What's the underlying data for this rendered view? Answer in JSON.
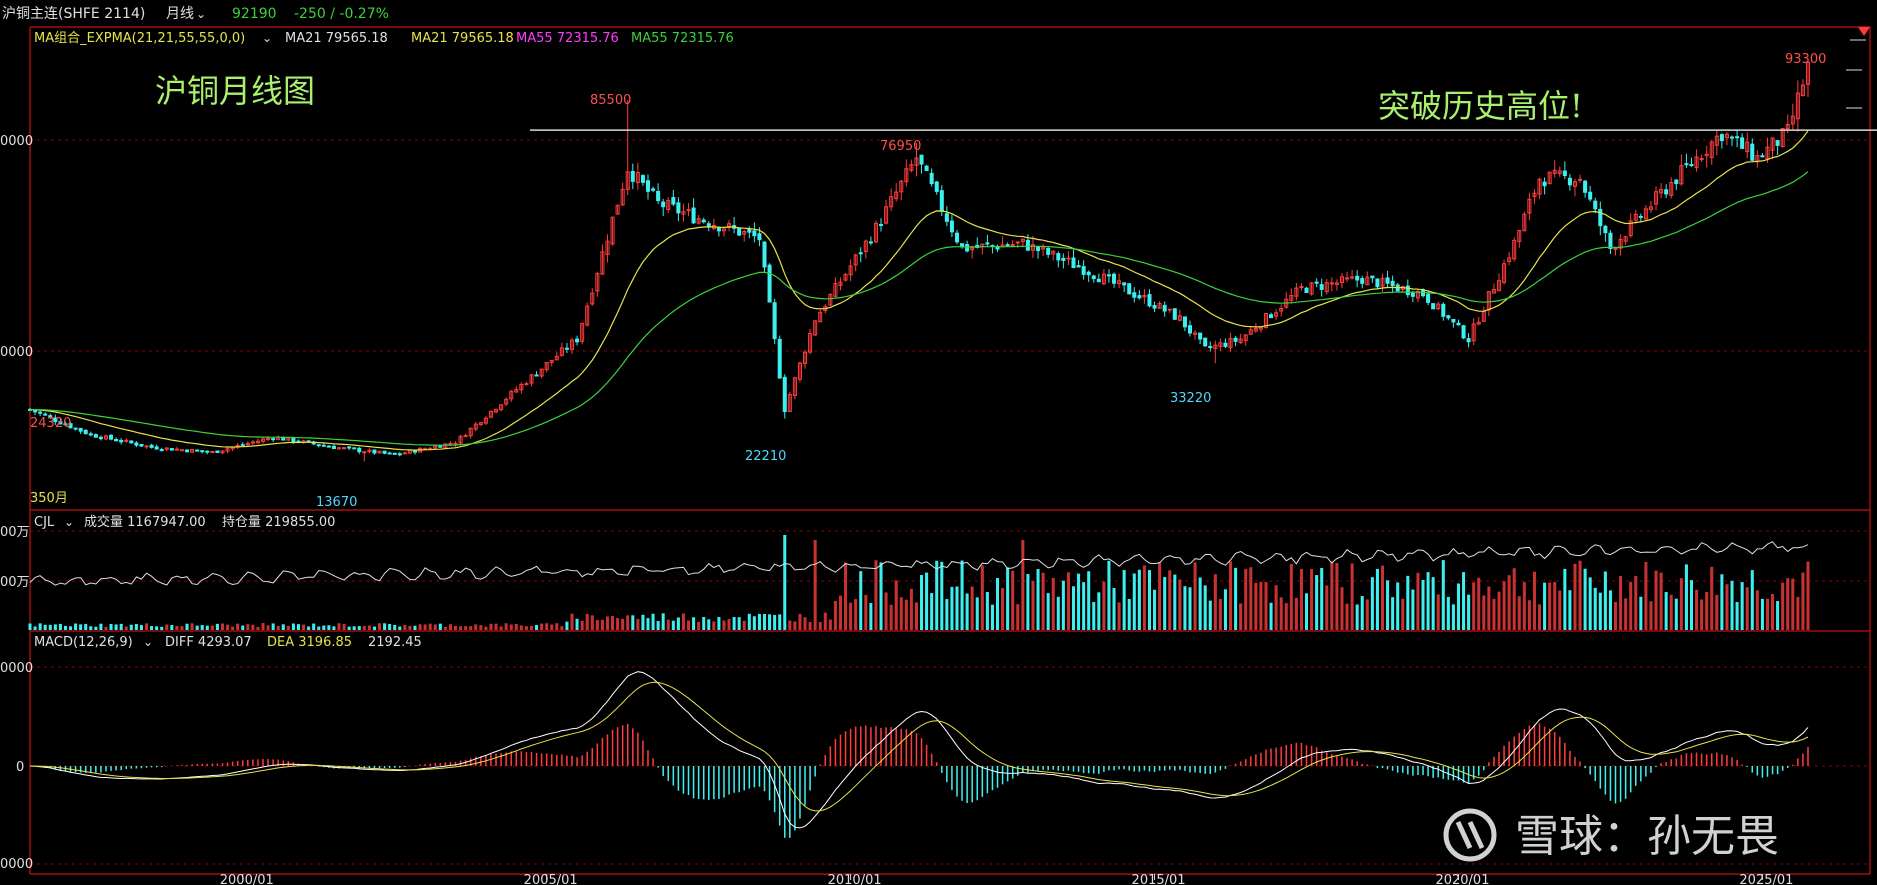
{
  "header": {
    "instrument": "沪铜主连(SHFE 2114)",
    "period": "月线",
    "price": "92190",
    "change": "-250 / -0.27%"
  },
  "price_panel": {
    "indicator": "MA组合_EXPMA(21,21,55,55,0,0)",
    "ma1": "MA21 79565.18",
    "ma2": "MA21 79565.18",
    "ma3": "MA55 72315.76",
    "ma4": "MA55 72315.76",
    "y_ticks": [
      "0000",
      "0000"
    ],
    "annot_title": "沪铜月线图",
    "annot_break": "突破历史高位!",
    "lbl_85500": "85500",
    "lbl_24320": "24320",
    "lbl_13670": "13670",
    "lbl_22210": "22210",
    "lbl_76950": "76950",
    "lbl_33220": "33220",
    "lbl_93300": "93300",
    "bar_count": "350月"
  },
  "volume_panel": {
    "indicator": "CJL",
    "vol": "成交量 1167947.00",
    "oi": "持仓量 219855.00",
    "y_ticks": [
      "00万",
      "00万"
    ]
  },
  "macd_panel": {
    "indicator": "MACD(12,26,9)",
    "diff": "DIFF 4293.07",
    "dea": "DEA 3196.85",
    "macd": "2192.45",
    "y_ticks": [
      "0000",
      "0",
      "0000"
    ]
  },
  "x_axis": {
    "ticks": [
      "2000/01",
      "2005/01",
      "2010/01",
      "2015/01",
      "2020/01",
      "2025/01"
    ]
  },
  "watermark": {
    "text": "雪球：孙无畏"
  },
  "colors": {
    "up": "#ff3c3c",
    "down": "#3cf0f0",
    "ema21": "#e8e34a",
    "ema55": "#3cd23c",
    "grid": "#8b0000",
    "frame": "#a01010",
    "text": "#e0e0e0",
    "label_red": "#ff5050",
    "label_cyan": "#50d8ff",
    "annot_green": "#a8f06e",
    "oi_line": "#e0e0e0"
  },
  "chart_data": {
    "type": "candlestick",
    "title": "沪铜月线图",
    "x": [
      "1996/07",
      "1997/07",
      "1998/07",
      "1999/07",
      "2000/07",
      "2001/07",
      "2002/07",
      "2003/07",
      "2004/07",
      "2005/07",
      "2006/05",
      "2006/11",
      "2007/07",
      "2008/07",
      "2008/12",
      "2009/06",
      "2010/06",
      "2011/02",
      "2011/11",
      "2012/11",
      "2013/11",
      "2014/11",
      "2015/06",
      "2015/11",
      "2016/06",
      "2017/06",
      "2018/06",
      "2019/06",
      "2020/03",
      "2020/12",
      "2021/05",
      "2022/01",
      "2022/07",
      "2023/06",
      "2024/05",
      "2024/12",
      "2025/06",
      "2025/10"
    ],
    "close": [
      24000,
      19000,
      16500,
      15500,
      18500,
      16500,
      15000,
      17500,
      28000,
      38000,
      72000,
      65000,
      62000,
      58000,
      24000,
      42000,
      60000,
      74000,
      56000,
      57000,
      52000,
      46000,
      42000,
      36000,
      38000,
      48000,
      50000,
      47000,
      38000,
      57000,
      70000,
      70000,
      56000,
      68000,
      79000,
      74000,
      79000,
      92190
    ],
    "annotations": [
      "24320",
      "13670",
      "85500",
      "22210",
      "76950",
      "33220",
      "93300"
    ],
    "resistance": 79500,
    "ylim": [
      8000,
      100000
    ]
  }
}
